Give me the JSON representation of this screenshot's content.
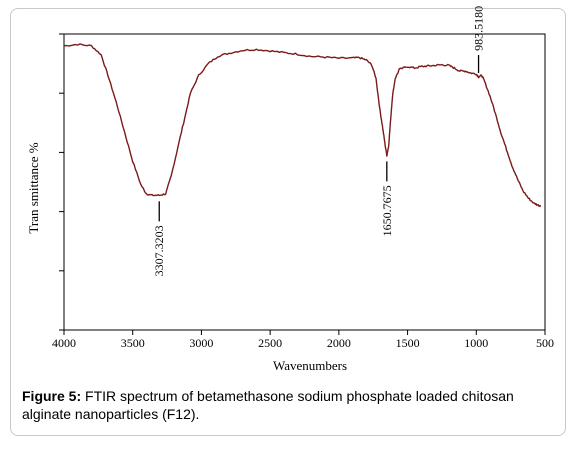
{
  "figure": {
    "caption_label": "Figure 5:",
    "caption_text": " FTIR spectrum of betamethasone sodium phosphate loaded chitosan alginate nanoparticles (F12)."
  },
  "chart_data": {
    "type": "line",
    "xlabel": "Wavenumbers",
    "ylabel": "Tran smittance %",
    "xlim": [
      4000,
      500
    ],
    "x_ticks": [
      4000,
      3500,
      3000,
      2500,
      2000,
      1500,
      1000,
      500
    ],
    "ylim": [
      0,
      100
    ],
    "y_tick_values": [
      0,
      20,
      40,
      60,
      80,
      100
    ],
    "y_tick_labels_shown": false,
    "grid": false,
    "line_color": "#7a1a1a",
    "series": [
      {
        "points": [
          [
            4000,
            96
          ],
          [
            3900,
            96.5
          ],
          [
            3800,
            96
          ],
          [
            3730,
            93
          ],
          [
            3680,
            86
          ],
          [
            3620,
            77
          ],
          [
            3560,
            67
          ],
          [
            3500,
            57
          ],
          [
            3440,
            49
          ],
          [
            3400,
            46
          ],
          [
            3360,
            45.5
          ],
          [
            3307,
            45.5
          ],
          [
            3260,
            46
          ],
          [
            3220,
            52
          ],
          [
            3180,
            60
          ],
          [
            3130,
            70
          ],
          [
            3080,
            80
          ],
          [
            3020,
            86
          ],
          [
            2950,
            90
          ],
          [
            2880,
            92.5
          ],
          [
            2800,
            93.5
          ],
          [
            2700,
            94.5
          ],
          [
            2600,
            94.8
          ],
          [
            2500,
            94.3
          ],
          [
            2400,
            93.7
          ],
          [
            2300,
            93.2
          ],
          [
            2200,
            92.4
          ],
          [
            2100,
            92.2
          ],
          [
            2000,
            91.8
          ],
          [
            1900,
            91.9
          ],
          [
            1850,
            92
          ],
          [
            1800,
            91.2
          ],
          [
            1760,
            89.5
          ],
          [
            1730,
            85
          ],
          [
            1700,
            74
          ],
          [
            1680,
            68
          ],
          [
            1665,
            63
          ],
          [
            1651,
            59
          ],
          [
            1638,
            62
          ],
          [
            1625,
            70
          ],
          [
            1610,
            79
          ],
          [
            1590,
            85
          ],
          [
            1560,
            88
          ],
          [
            1500,
            89
          ],
          [
            1450,
            88.5
          ],
          [
            1400,
            89
          ],
          [
            1350,
            89.2
          ],
          [
            1300,
            89.4
          ],
          [
            1250,
            89.6
          ],
          [
            1200,
            89.4
          ],
          [
            1160,
            88.5
          ],
          [
            1120,
            87.5
          ],
          [
            1080,
            87.5
          ],
          [
            1040,
            86.8
          ],
          [
            1000,
            86.5
          ],
          [
            983.5,
            85.5
          ],
          [
            960,
            86
          ],
          [
            940,
            84
          ],
          [
            900,
            79
          ],
          [
            860,
            73
          ],
          [
            820,
            66.5
          ],
          [
            780,
            61
          ],
          [
            740,
            55.5
          ],
          [
            700,
            51
          ],
          [
            660,
            47
          ],
          [
            620,
            44.5
          ],
          [
            580,
            42.8
          ],
          [
            550,
            42.2
          ],
          [
            530,
            42
          ]
        ]
      }
    ],
    "annotations": [
      {
        "x": 3307,
        "label": "3307.3203"
      },
      {
        "x": 1651,
        "label": "1650.7675"
      },
      {
        "x": 983.5,
        "label": "983.5180"
      }
    ]
  }
}
